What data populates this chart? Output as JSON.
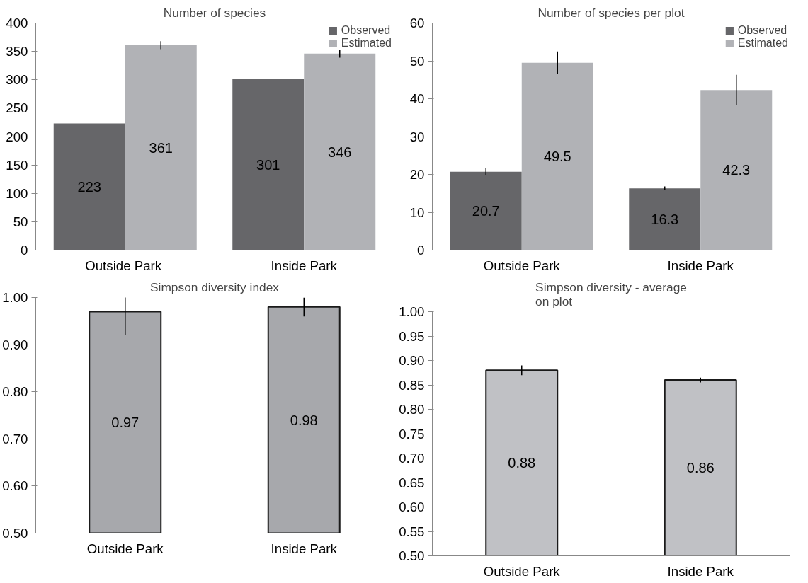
{
  "chart_data": [
    {
      "type": "bar",
      "title": "Number of species",
      "categories": [
        "Outside  Park",
        "Inside Park"
      ],
      "series": [
        {
          "name": "Observed",
          "color": "#666669",
          "values": [
            223,
            301
          ]
        },
        {
          "name": "Estimated",
          "color": "#b1b2b6",
          "values": [
            361,
            346
          ],
          "errors": [
            7,
            7
          ]
        }
      ],
      "ylim": [
        0,
        400
      ],
      "yticks": [
        0,
        50,
        100,
        150,
        200,
        250,
        300,
        350,
        400
      ],
      "data_labels": true,
      "legend": "top right",
      "grid": false
    },
    {
      "type": "bar",
      "title": "Number of species per plot",
      "categories": [
        "Outside Park",
        "Inside Park"
      ],
      "series": [
        {
          "name": "Observed",
          "color": "#666669",
          "values": [
            20.7,
            16.3
          ],
          "errors": [
            1,
            0.5
          ]
        },
        {
          "name": "Estimated",
          "color": "#b1b2b6",
          "values": [
            49.5,
            42.3
          ],
          "errors": [
            3,
            4
          ]
        }
      ],
      "ylim": [
        0,
        60
      ],
      "yticks": [
        0,
        10,
        20,
        30,
        40,
        50,
        60
      ],
      "data_labels": true,
      "legend": "top right",
      "grid": false
    },
    {
      "type": "bar",
      "title": "Simpson diversity index",
      "categories": [
        "Outside Park",
        "Inside Park"
      ],
      "values": [
        0.97,
        0.98
      ],
      "errors": [
        0.05,
        0.02
      ],
      "color": "#a7a8ac",
      "ylim": [
        0.5,
        1.0
      ],
      "yticks": [
        {
          "value": 0.5,
          "label": "0.50"
        },
        {
          "value": 0.6,
          "label": "0.60"
        },
        {
          "value": 0.7,
          "label": "0.70"
        },
        {
          "value": 0.8,
          "label": "0.80"
        },
        {
          "value": 0.9,
          "label": "0.90"
        },
        {
          "value": 1.0,
          "label": "1.00"
        }
      ],
      "data_labels": true,
      "grid": false
    },
    {
      "type": "bar",
      "title": "Simpson diversity - average on plot",
      "categories": [
        "Outside Park",
        "Inside Park"
      ],
      "values": [
        0.88,
        0.86
      ],
      "errors": [
        0.01,
        0.005
      ],
      "color": "#c0c1c5",
      "ylim": [
        0.5,
        1.0
      ],
      "yticks": [
        {
          "value": 0.5,
          "label": "0.50"
        },
        {
          "value": 0.55,
          "label": "0.55"
        },
        {
          "value": 0.6,
          "label": "0.60"
        },
        {
          "value": 0.65,
          "label": "0.65"
        },
        {
          "value": 0.7,
          "label": "0.70"
        },
        {
          "value": 0.75,
          "label": "0.75"
        },
        {
          "value": 0.8,
          "label": "0.80"
        },
        {
          "value": 0.85,
          "label": "0.85"
        },
        {
          "value": 0.9,
          "label": "0.90"
        },
        {
          "value": 0.95,
          "label": "0.95"
        },
        {
          "value": 1.0,
          "label": "1.00"
        }
      ],
      "data_labels": true,
      "grid": false
    }
  ]
}
